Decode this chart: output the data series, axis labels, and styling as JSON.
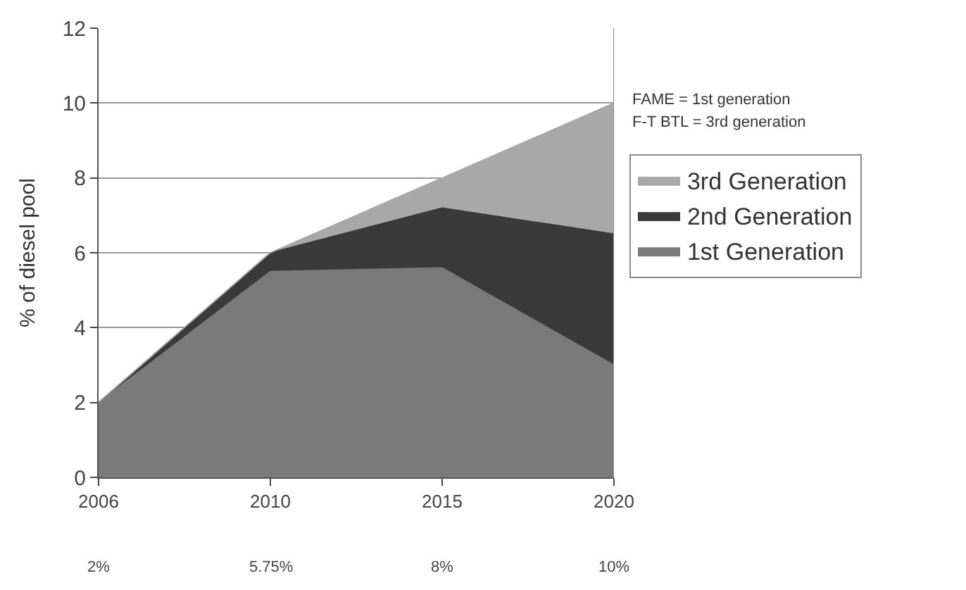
{
  "chart_data": {
    "type": "area",
    "stacked": true,
    "ylabel": "% of diesel pool",
    "categories": [
      "2006",
      "2010",
      "2015",
      "2020"
    ],
    "series": [
      {
        "name": "1st Generation",
        "color": "#7a7a7a",
        "values": [
          2.0,
          5.5,
          5.6,
          3.0
        ]
      },
      {
        "name": "2nd Generation",
        "color": "#3a3a3a",
        "values": [
          0,
          0.5,
          1.6,
          3.5
        ]
      },
      {
        "name": "3rd Generation",
        "color": "#a8a8a8",
        "values": [
          0,
          0,
          0.8,
          3.5
        ]
      }
    ],
    "ylim": [
      0,
      12
    ],
    "yticks": [
      0,
      2,
      4,
      6,
      8,
      10,
      12
    ],
    "grid": "y",
    "legend": "right",
    "annotations": [
      "FAME = 1st generation",
      "F-T BTL = 3rd generation",
      "2%",
      "5.75%",
      "8%",
      "10%"
    ]
  }
}
